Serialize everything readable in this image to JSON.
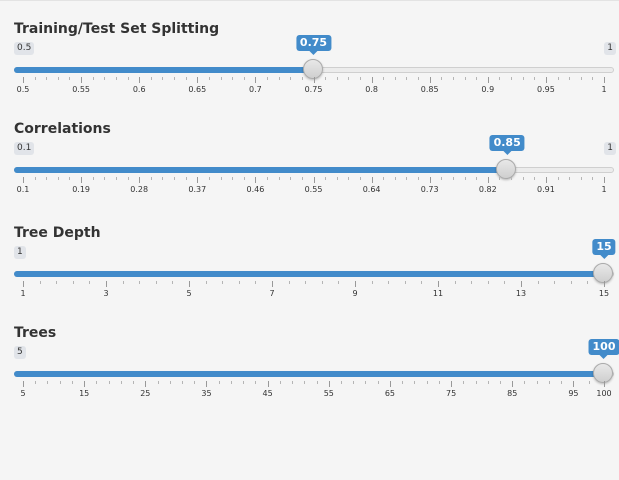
{
  "sliders": [
    {
      "title": "Training/Test Set Splitting",
      "min_label": "0.5",
      "max_label": "1",
      "value_label": "0.75",
      "min": 0.5,
      "max": 1,
      "value": 0.75,
      "ticks": [
        "0.5",
        "0.55",
        "0.6",
        "0.65",
        "0.7",
        "0.75",
        "0.8",
        "0.85",
        "0.9",
        "0.95",
        "1"
      ]
    },
    {
      "title": "Correlations",
      "min_label": "0.1",
      "max_label": "1",
      "value_label": "0.85",
      "min": 0.1,
      "max": 1,
      "value": 0.85,
      "ticks": [
        "0.1",
        "0.19",
        "0.28",
        "0.37",
        "0.46",
        "0.55",
        "0.64",
        "0.73",
        "0.82",
        "0.91",
        "1"
      ]
    },
    {
      "title": "Tree Depth",
      "min_label": "1",
      "max_label": "",
      "value_label": "15",
      "min": 1,
      "max": 15,
      "value": 15,
      "ticks": [
        "1",
        "3",
        "5",
        "7",
        "9",
        "11",
        "13",
        "15"
      ]
    },
    {
      "title": "Trees",
      "min_label": "5",
      "max_label": "",
      "value_label": "100",
      "min": 5,
      "max": 100,
      "value": 100,
      "ticks": [
        "5",
        "15",
        "25",
        "35",
        "45",
        "55",
        "65",
        "75",
        "85",
        "95",
        "100"
      ]
    }
  ],
  "colors": {
    "accent": "#428bca",
    "track": "#ececec",
    "badge_grey": "#e1e4e9"
  }
}
